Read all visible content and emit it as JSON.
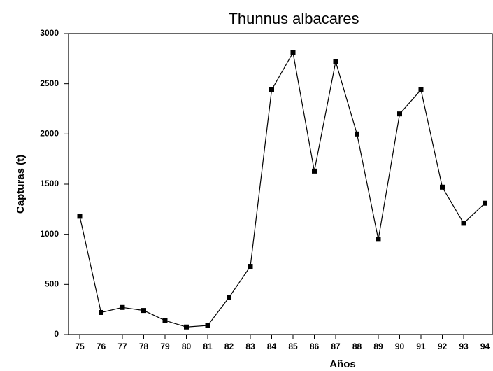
{
  "chart_data": {
    "type": "line",
    "title": "Thunnus albacares",
    "x_label": "Años",
    "y_label": "Capturas (t)",
    "categories": [
      "75",
      "76",
      "77",
      "78",
      "79",
      "80",
      "81",
      "82",
      "83",
      "84",
      "85",
      "86",
      "87",
      "88",
      "89",
      "90",
      "91",
      "92",
      "93",
      "94"
    ],
    "values": [
      1180,
      220,
      270,
      240,
      140,
      75,
      90,
      370,
      680,
      2440,
      2810,
      1630,
      2720,
      2000,
      950,
      2200,
      2440,
      1470,
      1110,
      1310
    ],
    "color": "#000000",
    "ylim": [
      0,
      3000
    ],
    "yticks": [
      0,
      500,
      1000,
      1500,
      2000,
      2500,
      3000
    ],
    "grid": false
  }
}
